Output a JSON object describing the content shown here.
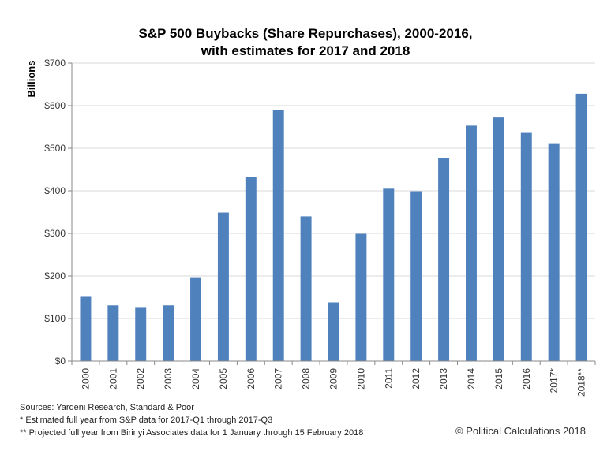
{
  "chart_data": {
    "type": "bar",
    "title": "S&P 500 Buybacks (Share Repurchases), 2000-2016,",
    "subtitle": "with estimates for 2017 and 2018",
    "xlabel": "",
    "ylabel": "Billions",
    "ylim": [
      0,
      700
    ],
    "yticks": [
      0,
      100,
      200,
      300,
      400,
      500,
      600,
      700
    ],
    "ytick_labels": [
      "$0",
      "$100",
      "$200",
      "$300",
      "$400",
      "$500",
      "$600",
      "$700"
    ],
    "grid": true,
    "legend": "none",
    "bar_color": "#4F81BD",
    "categories": [
      "2000",
      "2001",
      "2002",
      "2003",
      "2004",
      "2005",
      "2006",
      "2007",
      "2008",
      "2009",
      "2010",
      "2011",
      "2012",
      "2013",
      "2014",
      "2015",
      "2016",
      "2017*",
      "2018**"
    ],
    "series": [
      {
        "name": "S&P 500 Buybacks",
        "values": [
          151,
          131,
          127,
          131,
          197,
          349,
          432,
          589,
          340,
          138,
          299,
          405,
          399,
          476,
          553,
          572,
          536,
          510,
          628
        ]
      }
    ]
  },
  "footer": {
    "sources": "Sources: Yardeni Research, Standard & Poor",
    "note1": "* Estimated full year from S&P data for 2017-Q1 through  2017-Q3",
    "note2": "** Projected full year from Birinyi Associates data for 1 January through  15 February  2018",
    "copyright": "© Political Calculations 2018"
  }
}
